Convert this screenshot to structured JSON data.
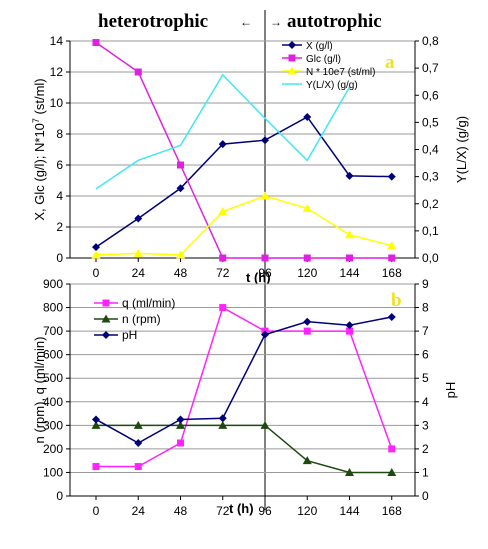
{
  "header": {
    "left_label": "heterotrophic",
    "right_label": "autotrophic",
    "left_arrow": "←",
    "right_arrow": "→"
  },
  "chart_data": [
    {
      "type": "line",
      "panel_label": "a",
      "x": [
        0,
        24,
        48,
        72,
        96,
        120,
        144,
        168
      ],
      "xlabel": "t (h)",
      "ylabel": "X, Glc (g/l); N*10",
      "ylabel_sup": "7",
      "ylabel_end": " (st/ml)",
      "y2label": "Y(L/X) (g/g)",
      "ylim": [
        0,
        14
      ],
      "yticks": [
        "0",
        "2",
        "4",
        "6",
        "8",
        "10",
        "12",
        "14"
      ],
      "y2lim": [
        0,
        0.8
      ],
      "y2ticks": [
        "0,0",
        "0,1",
        "0,2",
        "0,3",
        "0,4",
        "0,5",
        "0,6",
        "0,7",
        "0,8"
      ],
      "xticks": [
        "0",
        "24",
        "48",
        "72",
        "96",
        "120",
        "144",
        "168"
      ],
      "series": [
        {
          "name": "X (g/l)",
          "axis": "left",
          "color": "#00007A",
          "marker": "diamond",
          "values": [
            0.7,
            2.55,
            4.5,
            7.35,
            7.6,
            9.1,
            5.3,
            5.25
          ]
        },
        {
          "name": "Glc (g/l)",
          "axis": "left",
          "color": "#E020E0",
          "marker": "square",
          "values": [
            13.9,
            12.0,
            6.0,
            0.0,
            0.0,
            0.0,
            0.0,
            0.0
          ]
        },
        {
          "name": "N * 10e7 (st/ml)",
          "axis": "left",
          "color": "#FFFF00",
          "marker": "triangle",
          "values": [
            0.2,
            0.3,
            0.2,
            3.0,
            4.0,
            3.2,
            1.5,
            0.8
          ]
        },
        {
          "name": "Y(L/X) (g/g)",
          "axis": "right",
          "color": "#40E8F0",
          "marker": "none",
          "values": [
            0.255,
            0.36,
            0.415,
            0.675,
            0.515,
            0.36,
            0.63,
            null
          ]
        }
      ]
    },
    {
      "type": "line",
      "panel_label": "b",
      "x": [
        0,
        24,
        48,
        72,
        96,
        120,
        144,
        168
      ],
      "xlabel": "t (h)",
      "ylabel": "n (rpm), q (ml/min)",
      "y2label": "pH",
      "ylim": [
        0,
        900
      ],
      "yticks": [
        "0",
        "100",
        "200",
        "300",
        "400",
        "500",
        "600",
        "700",
        "800",
        "900"
      ],
      "y2lim": [
        0,
        9
      ],
      "y2ticks": [
        "0",
        "1",
        "2",
        "3",
        "4",
        "5",
        "6",
        "7",
        "8",
        "9"
      ],
      "xticks": [
        "0",
        "24",
        "48",
        "72",
        "96",
        "120",
        "144",
        "168"
      ],
      "series": [
        {
          "name": "q (ml/min)",
          "axis": "left",
          "color": "#FF22FF",
          "marker": "square",
          "values": [
            125,
            125,
            225,
            800,
            700,
            700,
            700,
            200
          ]
        },
        {
          "name": "n (rpm)",
          "axis": "left",
          "color": "#1E4A10",
          "marker": "triangle",
          "values": [
            300,
            300,
            300,
            300,
            300,
            150,
            100,
            100
          ]
        },
        {
          "name": "pH",
          "axis": "right",
          "color": "#00007A",
          "marker": "diamond",
          "values": [
            3.25,
            2.25,
            3.25,
            3.3,
            6.85,
            7.4,
            7.25,
            7.6
          ]
        }
      ]
    }
  ]
}
